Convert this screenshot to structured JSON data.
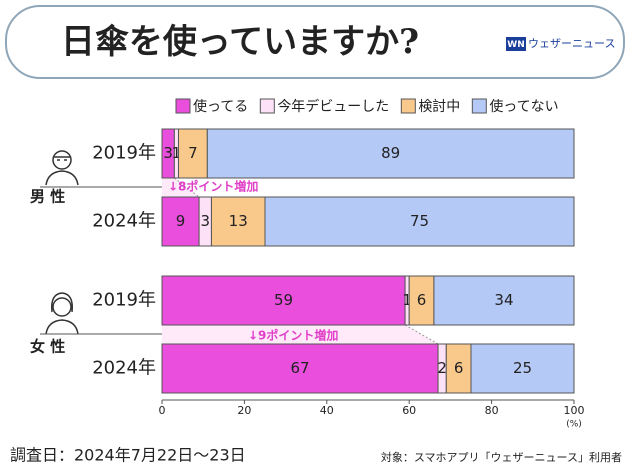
{
  "chart_data": {
    "type": "stacked-bar-horizontal",
    "title": "日傘を使っていますか?",
    "logo": {
      "mark": "WN",
      "text": "ウェザーニュース"
    },
    "groups": [
      "男 性",
      "女 性"
    ],
    "categories": [
      "2019年",
      "2024年",
      "2019年",
      "2024年"
    ],
    "series": [
      {
        "name": "使ってる",
        "color": "#e94fdc",
        "values": [
          3,
          9,
          59,
          67
        ]
      },
      {
        "name": "今年デビューした",
        "color": "#fde1f6",
        "values": [
          1,
          3,
          1,
          2
        ]
      },
      {
        "name": "検討中",
        "color": "#f9c98c",
        "values": [
          7,
          13,
          6,
          6
        ]
      },
      {
        "name": "使ってない",
        "color": "#b5c9f6",
        "values": [
          89,
          75,
          34,
          25
        ]
      }
    ],
    "annotations": [
      "↓8ポイント増加",
      "↓9ポイント増加"
    ],
    "xlim": [
      0,
      100
    ],
    "xticks": [
      0,
      20,
      40,
      60,
      80,
      100
    ],
    "x_unit": "(%)",
    "footer_left": "調査日：2024年7月22日〜23日",
    "footer_right": "対象：スマホアプリ「ウェザーニュース」利用者"
  }
}
